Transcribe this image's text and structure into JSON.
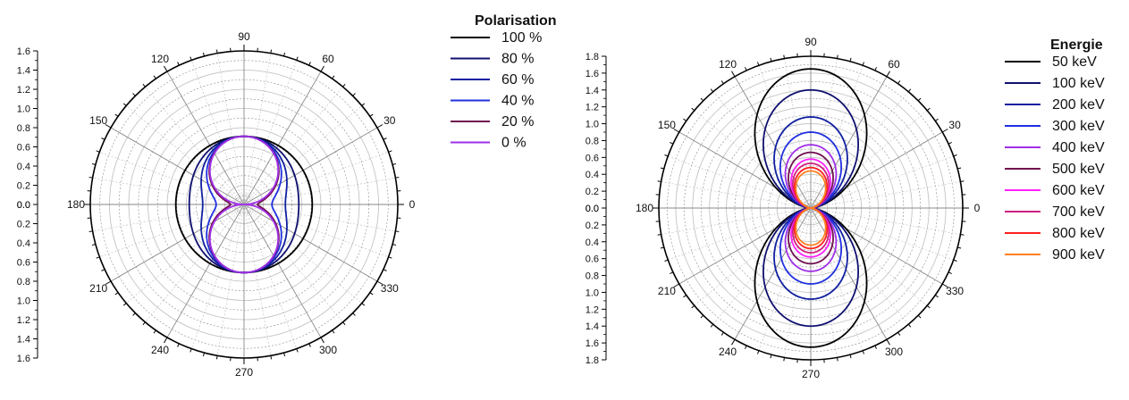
{
  "chart_data": [
    {
      "type": "polar",
      "angular_ticks": [
        "0",
        "30",
        "60",
        "90",
        "120",
        "150",
        "180",
        "210",
        "240",
        "270",
        "300",
        "330"
      ],
      "radial_ticks": [
        "0.0",
        "0.2",
        "0.4",
        "0.6",
        "0.8",
        "1.0",
        "1.2",
        "1.4",
        "1.6"
      ],
      "rmax": 1.6,
      "legend": {
        "title": "Polarisation",
        "placement": "right"
      },
      "series": [
        {
          "name": "100 %",
          "A": 0.71,
          "B": 0.71,
          "color": "#000000"
        },
        {
          "name": "80 %",
          "A": 0.71,
          "B": 0.57,
          "color": "#101070"
        },
        {
          "name": "60 %",
          "A": 0.71,
          "B": 0.43,
          "color": "#1020a0"
        },
        {
          "name": " 40 %",
          "A": 0.71,
          "B": 0.29,
          "color": "#2030e0"
        },
        {
          "name": "20 %",
          "A": 0.71,
          "B": 0.14,
          "color": "#701050"
        },
        {
          "name": " 0 %",
          "A": 0.71,
          "B": 0.0,
          "color": "#a030e8"
        }
      ]
    },
    {
      "type": "polar",
      "angular_ticks": [
        "0",
        "30",
        "60",
        "90",
        "120",
        "150",
        "180",
        "210",
        "240",
        "270",
        "300",
        "330"
      ],
      "radial_ticks": [
        "0.0",
        "0.2",
        "0.4",
        "0.6",
        "0.8",
        "1.0",
        "1.2",
        "1.4",
        "1.6",
        "1.8"
      ],
      "rmax": 1.8,
      "legend": {
        "title": "Energie",
        "placement": "right"
      },
      "series": [
        {
          "name": "50 keV",
          "peak": 1.65,
          "color": "#000000"
        },
        {
          "name": "100 keV",
          "peak": 1.4,
          "color": "#101070"
        },
        {
          "name": "200 keV",
          "peak": 1.08,
          "color": "#1020a0"
        },
        {
          "name": "300 keV",
          "peak": 0.9,
          "color": "#2030e0"
        },
        {
          "name": "400 keV",
          "peak": 0.75,
          "color": "#a030e8"
        },
        {
          "name": "500 keV",
          "peak": 0.66,
          "color": "#701050"
        },
        {
          "name": "600 keV",
          "peak": 0.58,
          "color": "#ff20ff"
        },
        {
          "name": "700 keV",
          "peak": 0.53,
          "color": "#d02080"
        },
        {
          "name": "800 keV",
          "peak": 0.48,
          "color": "#ff2020"
        },
        {
          "name": "900 keV",
          "peak": 0.44,
          "color": "#ff8020"
        }
      ]
    }
  ]
}
